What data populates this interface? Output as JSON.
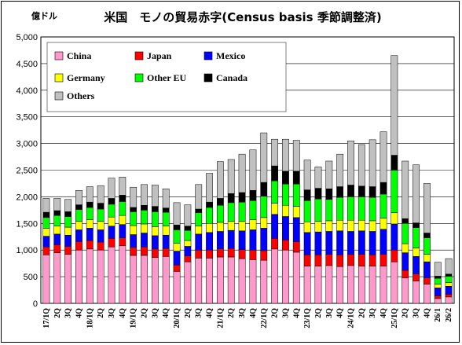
{
  "chart_data": {
    "type": "bar",
    "stacked": true,
    "title": "米国　モノの貿易赤字(Census basis 季節調整済)",
    "unit_label": "億ドル",
    "ylim": [
      0,
      5000
    ],
    "yticks": [
      0,
      500,
      1000,
      1500,
      2000,
      2500,
      3000,
      3500,
      4000,
      4500,
      5000
    ],
    "ytick_labels": [
      "0",
      "500",
      "1,000",
      "1,500",
      "2,000",
      "2,500",
      "3,000",
      "3,500",
      "4,000",
      "4,500",
      "5,000"
    ],
    "grid": true,
    "legend_position": "top-left-inside",
    "categories": [
      "17/1Q",
      "2Q",
      "3Q",
      "4Q",
      "18/1Q",
      "2Q",
      "3Q",
      "4Q",
      "19/1Q",
      "2Q",
      "3Q",
      "4Q",
      "20/1Q",
      "2Q",
      "3Q",
      "4Q",
      "21/1Q",
      "2Q",
      "3Q",
      "4Q",
      "22/1Q",
      "2Q",
      "3Q",
      "4Q",
      "23/1Q",
      "2Q",
      "3Q",
      "4Q",
      "24/1Q",
      "2Q",
      "3Q",
      "4Q",
      "25/1Q",
      "2Q",
      "3Q",
      "4Q",
      "26/1",
      "26/2"
    ],
    "series": [
      {
        "name": "China",
        "color": "#ff99cc",
        "values": [
          910,
          950,
          920,
          1000,
          1020,
          1000,
          1060,
          1080,
          900,
          900,
          860,
          880,
          600,
          780,
          850,
          850,
          870,
          870,
          840,
          820,
          810,
          1020,
          1000,
          960,
          700,
          700,
          710,
          690,
          710,
          700,
          700,
          700,
          780,
          480,
          420,
          360,
          90,
          120
        ]
      },
      {
        "name": "Japan",
        "color": "#ff0000",
        "values": [
          150,
          150,
          150,
          160,
          160,
          150,
          160,
          150,
          150,
          160,
          160,
          150,
          120,
          110,
          150,
          150,
          150,
          160,
          170,
          180,
          180,
          200,
          190,
          200,
          210,
          210,
          210,
          220,
          210,
          220,
          210,
          220,
          220,
          140,
          130,
          120,
          50,
          50
        ]
      },
      {
        "name": "Mexico",
        "color": "#0000ff",
        "values": [
          200,
          200,
          210,
          220,
          230,
          230,
          230,
          250,
          240,
          260,
          250,
          250,
          260,
          180,
          300,
          330,
          330,
          340,
          350,
          380,
          420,
          450,
          440,
          450,
          420,
          430,
          430,
          450,
          430,
          440,
          440,
          470,
          490,
          330,
          330,
          300,
          150,
          150
        ]
      },
      {
        "name": "Germany",
        "color": "#ffff00",
        "values": [
          150,
          150,
          150,
          160,
          160,
          160,
          170,
          170,
          170,
          170,
          170,
          170,
          150,
          110,
          150,
          170,
          170,
          170,
          180,
          190,
          200,
          210,
          210,
          210,
          200,
          200,
          200,
          200,
          210,
          200,
          200,
          210,
          210,
          170,
          160,
          140,
          70,
          70
        ]
      },
      {
        "name": "Other EU",
        "color": "#00ff00",
        "values": [
          200,
          200,
          200,
          220,
          230,
          230,
          240,
          260,
          260,
          260,
          280,
          260,
          250,
          190,
          250,
          300,
          320,
          350,
          360,
          360,
          400,
          420,
          400,
          420,
          400,
          420,
          400,
          430,
          440,
          440,
          440,
          450,
          800,
          380,
          380,
          310,
          110,
          120
        ]
      },
      {
        "name": "Canada",
        "color": "#000000",
        "values": [
          100,
          90,
          90,
          90,
          100,
          110,
          110,
          120,
          80,
          90,
          100,
          80,
          90,
          80,
          70,
          100,
          130,
          170,
          180,
          190,
          260,
          280,
          240,
          240,
          200,
          200,
          200,
          200,
          220,
          200,
          200,
          220,
          280,
          90,
          90,
          90,
          40,
          40
        ]
      },
      {
        "name": "Others",
        "color": "#c0c0c0",
        "values": [
          260,
          230,
          230,
          270,
          290,
          330,
          380,
          340,
          380,
          390,
          400,
          360,
          420,
          400,
          460,
          540,
          690,
          640,
          720,
          760,
          930,
          500,
          600,
          580,
          560,
          400,
          520,
          610,
          830,
          780,
          880,
          950,
          1870,
          1080,
          1090,
          930,
          260,
          290
        ]
      }
    ]
  }
}
